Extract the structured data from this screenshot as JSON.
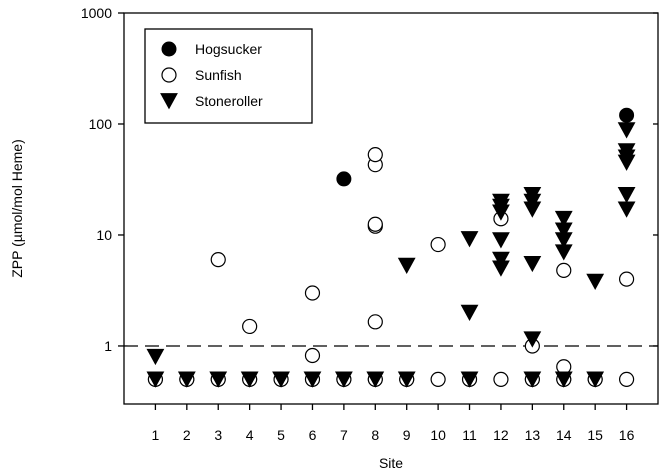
{
  "chart_data": {
    "type": "scatter",
    "title": "",
    "xlabel": "Site",
    "ylabel": "ZPP (µmol/mol Heme)",
    "yscale": "log",
    "ylim": [
      0.3,
      1000
    ],
    "xlim": [
      0,
      17
    ],
    "x_ticks": [
      1,
      2,
      3,
      4,
      5,
      6,
      7,
      8,
      9,
      10,
      11,
      12,
      13,
      14,
      15,
      16
    ],
    "y_ticks": [
      {
        "value": 1,
        "label": "1"
      },
      {
        "value": 10,
        "label": "10"
      },
      {
        "value": 100,
        "label": "100"
      },
      {
        "value": 1000,
        "label": "1000"
      }
    ],
    "reference_line": {
      "y": 1,
      "style": "dashed"
    },
    "grid": false,
    "legend_position": "top-left",
    "series": [
      {
        "name": "Hogsucker",
        "marker": "filled-circle",
        "color": "#000000",
        "points": [
          {
            "x": 1,
            "y": 0.5
          },
          {
            "x": 2,
            "y": 0.5
          },
          {
            "x": 3,
            "y": 0.5
          },
          {
            "x": 4,
            "y": 0.5
          },
          {
            "x": 5,
            "y": 0.5
          },
          {
            "x": 6,
            "y": 0.5
          },
          {
            "x": 7,
            "y": 0.5
          },
          {
            "x": 7,
            "y": 32
          },
          {
            "x": 8,
            "y": 0.5
          },
          {
            "x": 9,
            "y": 0.5
          },
          {
            "x": 11,
            "y": 0.5
          },
          {
            "x": 13,
            "y": 0.5
          },
          {
            "x": 14,
            "y": 0.5
          },
          {
            "x": 15,
            "y": 0.5
          },
          {
            "x": 16,
            "y": 120
          }
        ]
      },
      {
        "name": "Sunfish",
        "marker": "open-circle",
        "color": "#000000",
        "points": [
          {
            "x": 1,
            "y": 0.5
          },
          {
            "x": 2,
            "y": 0.5
          },
          {
            "x": 3,
            "y": 0.5
          },
          {
            "x": 3,
            "y": 6
          },
          {
            "x": 4,
            "y": 0.5
          },
          {
            "x": 4,
            "y": 1.5
          },
          {
            "x": 5,
            "y": 0.5
          },
          {
            "x": 6,
            "y": 0.5
          },
          {
            "x": 6,
            "y": 0.82
          },
          {
            "x": 6,
            "y": 3
          },
          {
            "x": 7,
            "y": 0.5
          },
          {
            "x": 8,
            "y": 0.5
          },
          {
            "x": 8,
            "y": 1.65
          },
          {
            "x": 8,
            "y": 12
          },
          {
            "x": 8,
            "y": 12.5
          },
          {
            "x": 8,
            "y": 43
          },
          {
            "x": 8,
            "y": 53
          },
          {
            "x": 9,
            "y": 0.5
          },
          {
            "x": 10,
            "y": 0.5
          },
          {
            "x": 10,
            "y": 8.2
          },
          {
            "x": 11,
            "y": 0.5
          },
          {
            "x": 12,
            "y": 0.5
          },
          {
            "x": 12,
            "y": 14
          },
          {
            "x": 13,
            "y": 0.5
          },
          {
            "x": 13,
            "y": 1
          },
          {
            "x": 14,
            "y": 0.5
          },
          {
            "x": 14,
            "y": 0.65
          },
          {
            "x": 14,
            "y": 4.8
          },
          {
            "x": 15,
            "y": 0.5
          },
          {
            "x": 16,
            "y": 0.5
          },
          {
            "x": 16,
            "y": 4
          }
        ]
      },
      {
        "name": "Stoneroller",
        "marker": "filled-triangle-down",
        "color": "#000000",
        "points": [
          {
            "x": 1,
            "y": 0.5
          },
          {
            "x": 1,
            "y": 0.8
          },
          {
            "x": 2,
            "y": 0.5
          },
          {
            "x": 3,
            "y": 0.5
          },
          {
            "x": 4,
            "y": 0.5
          },
          {
            "x": 5,
            "y": 0.5
          },
          {
            "x": 6,
            "y": 0.5
          },
          {
            "x": 7,
            "y": 0.5
          },
          {
            "x": 8,
            "y": 0.5
          },
          {
            "x": 9,
            "y": 0.5
          },
          {
            "x": 9,
            "y": 5.3
          },
          {
            "x": 11,
            "y": 0.5
          },
          {
            "x": 11,
            "y": 2
          },
          {
            "x": 11,
            "y": 9.2
          },
          {
            "x": 12,
            "y": 5
          },
          {
            "x": 12,
            "y": 6
          },
          {
            "x": 12,
            "y": 9
          },
          {
            "x": 12,
            "y": 16
          },
          {
            "x": 12,
            "y": 18
          },
          {
            "x": 12,
            "y": 20
          },
          {
            "x": 13,
            "y": 0.5
          },
          {
            "x": 13,
            "y": 1.15
          },
          {
            "x": 13,
            "y": 5.5
          },
          {
            "x": 13,
            "y": 17
          },
          {
            "x": 13,
            "y": 20
          },
          {
            "x": 13,
            "y": 23
          },
          {
            "x": 14,
            "y": 0.5
          },
          {
            "x": 14,
            "y": 7
          },
          {
            "x": 14,
            "y": 9
          },
          {
            "x": 14,
            "y": 11
          },
          {
            "x": 14,
            "y": 14
          },
          {
            "x": 15,
            "y": 0.5
          },
          {
            "x": 15,
            "y": 3.8
          },
          {
            "x": 16,
            "y": 17
          },
          {
            "x": 16,
            "y": 23
          },
          {
            "x": 16,
            "y": 45
          },
          {
            "x": 16,
            "y": 50
          },
          {
            "x": 16,
            "y": 57
          },
          {
            "x": 16,
            "y": 88
          }
        ]
      }
    ]
  }
}
